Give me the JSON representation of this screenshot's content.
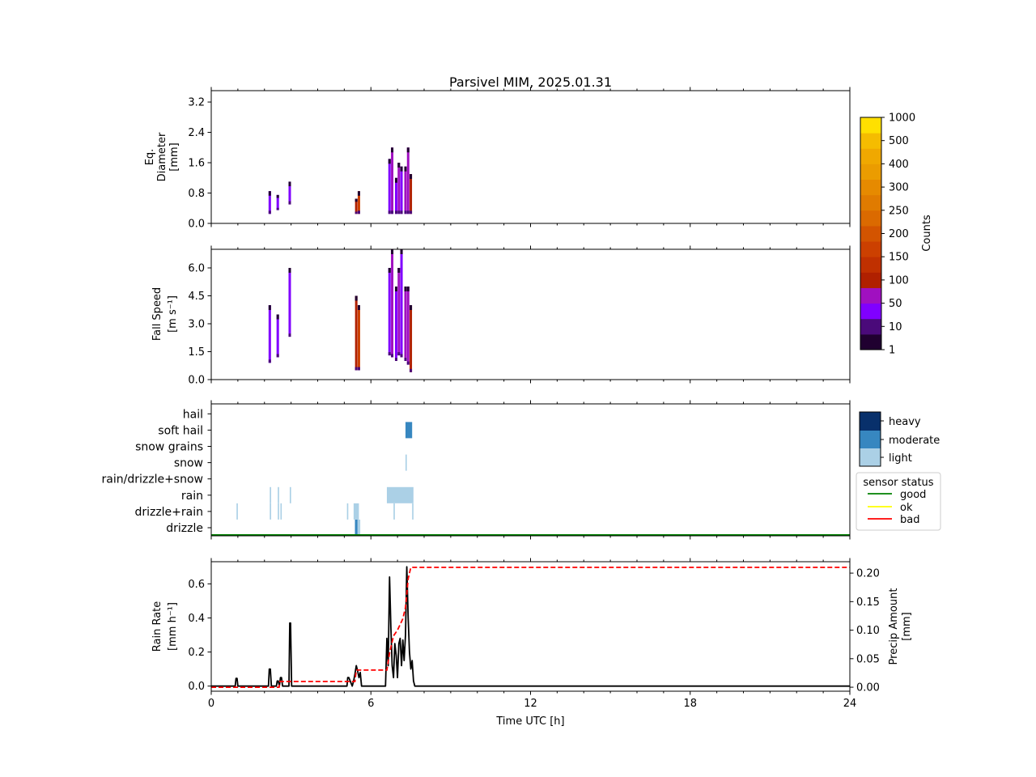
{
  "chart_data": {
    "type": "multi-panel",
    "title": "Parsivel MIM, 2025.01.31",
    "xlabel": "Time UTC [h]",
    "xlim": [
      0,
      24
    ],
    "xticks": [
      "0",
      "6",
      "12",
      "18",
      "24"
    ],
    "panels": [
      {
        "id": "diameter",
        "type": "heatmap",
        "ylabel": [
          "Eq.",
          "Diameter",
          "[mm]"
        ],
        "ylim": [
          0,
          3.5
        ],
        "yticks": [
          0.0,
          0.8,
          1.6,
          2.4,
          3.2
        ],
        "ytick_labels": [
          "0.0",
          "0.8",
          "1.6",
          "2.4",
          "3.2"
        ],
        "columns": [
          {
            "t": 2.2,
            "ymin": 0.25,
            "ymax": 0.85,
            "level": 2
          },
          {
            "t": 2.5,
            "ymin": 0.35,
            "ymax": 0.75,
            "level": 2
          },
          {
            "t": 2.95,
            "ymin": 0.5,
            "ymax": 1.1,
            "level": 2
          },
          {
            "t": 5.45,
            "ymin": 0.25,
            "ymax": 0.65,
            "level": 4
          },
          {
            "t": 5.55,
            "ymin": 0.25,
            "ymax": 0.85,
            "level": 6
          },
          {
            "t": 6.7,
            "ymin": 0.25,
            "ymax": 1.7,
            "level": 2
          },
          {
            "t": 6.8,
            "ymin": 0.25,
            "ymax": 2.0,
            "level": 3
          },
          {
            "t": 6.95,
            "ymin": 0.25,
            "ymax": 1.2,
            "level": 2
          },
          {
            "t": 7.05,
            "ymin": 0.25,
            "ymax": 1.6,
            "level": 3
          },
          {
            "t": 7.15,
            "ymin": 0.25,
            "ymax": 1.5,
            "level": 2
          },
          {
            "t": 7.3,
            "ymin": 0.25,
            "ymax": 1.5,
            "level": 3
          },
          {
            "t": 7.4,
            "ymin": 0.25,
            "ymax": 2.0,
            "level": 3
          },
          {
            "t": 7.5,
            "ymin": 0.25,
            "ymax": 1.3,
            "level": 4
          }
        ]
      },
      {
        "id": "fallspeed",
        "type": "heatmap",
        "ylabel": [
          "Fall Speed",
          "[m s⁻¹]"
        ],
        "ylim": [
          0,
          7.0
        ],
        "yticks": [
          0.0,
          1.5,
          3.0,
          4.5,
          6.0
        ],
        "ytick_labels": [
          "0.0",
          "1.5",
          "3.0",
          "4.5",
          "6.0"
        ],
        "columns": [
          {
            "t": 2.2,
            "ymin": 0.9,
            "ymax": 4.0,
            "level": 2
          },
          {
            "t": 2.5,
            "ymin": 1.2,
            "ymax": 3.5,
            "level": 2
          },
          {
            "t": 2.95,
            "ymin": 2.3,
            "ymax": 6.0,
            "level": 2
          },
          {
            "t": 5.45,
            "ymin": 0.5,
            "ymax": 4.5,
            "level": 4
          },
          {
            "t": 5.55,
            "ymin": 0.5,
            "ymax": 4.0,
            "level": 6
          },
          {
            "t": 6.7,
            "ymin": 1.3,
            "ymax": 6.0,
            "level": 2
          },
          {
            "t": 6.8,
            "ymin": 1.2,
            "ymax": 7.0,
            "level": 3
          },
          {
            "t": 6.95,
            "ymin": 1.0,
            "ymax": 5.0,
            "level": 2
          },
          {
            "t": 7.05,
            "ymin": 1.3,
            "ymax": 6.0,
            "level": 3
          },
          {
            "t": 7.15,
            "ymin": 1.2,
            "ymax": 7.0,
            "level": 2
          },
          {
            "t": 7.3,
            "ymin": 1.0,
            "ymax": 5.0,
            "level": 3
          },
          {
            "t": 7.4,
            "ymin": 0.8,
            "ymax": 5.0,
            "level": 3
          },
          {
            "t": 7.5,
            "ymin": 0.4,
            "ymax": 4.0,
            "level": 4
          }
        ]
      },
      {
        "id": "precip_type",
        "type": "category",
        "categories": [
          "drizzle",
          "drizzle+rain",
          "rain",
          "rain/drizzle+snow",
          "snow",
          "snow grains",
          "soft hail",
          "hail"
        ],
        "segments": [
          {
            "cat": "drizzle",
            "t0": 5.4,
            "t1": 5.5,
            "intensity": "moderate"
          },
          {
            "cat": "drizzle",
            "t0": 5.5,
            "t1": 5.6,
            "intensity": "light"
          },
          {
            "cat": "drizzle+rain",
            "t0": 0.95,
            "t1": 1.0,
            "intensity": "light"
          },
          {
            "cat": "drizzle+rain",
            "t0": 2.2,
            "t1": 2.25,
            "intensity": "light"
          },
          {
            "cat": "drizzle+rain",
            "t0": 2.5,
            "t1": 2.55,
            "intensity": "light"
          },
          {
            "cat": "drizzle+rain",
            "t0": 2.6,
            "t1": 2.65,
            "intensity": "light"
          },
          {
            "cat": "drizzle+rain",
            "t0": 5.1,
            "t1": 5.15,
            "intensity": "light"
          },
          {
            "cat": "drizzle+rain",
            "t0": 5.35,
            "t1": 5.55,
            "intensity": "light"
          },
          {
            "cat": "drizzle+rain",
            "t0": 6.85,
            "t1": 6.9,
            "intensity": "light"
          },
          {
            "cat": "drizzle+rain",
            "t0": 7.55,
            "t1": 7.6,
            "intensity": "light"
          },
          {
            "cat": "rain",
            "t0": 2.2,
            "t1": 2.25,
            "intensity": "light"
          },
          {
            "cat": "rain",
            "t0": 2.5,
            "t1": 2.55,
            "intensity": "light"
          },
          {
            "cat": "rain",
            "t0": 2.95,
            "t1": 3.0,
            "intensity": "light"
          },
          {
            "cat": "rain",
            "t0": 6.6,
            "t1": 7.6,
            "intensity": "light"
          },
          {
            "cat": "snow",
            "t0": 7.3,
            "t1": 7.35,
            "intensity": "light"
          },
          {
            "cat": "soft hail",
            "t0": 7.3,
            "t1": 7.55,
            "intensity": "moderate"
          }
        ],
        "sensor_status": "good",
        "legend": {
          "intensity": [
            "heavy",
            "moderate",
            "light"
          ],
          "status_title": "sensor status",
          "status": [
            "good",
            "ok",
            "bad"
          ]
        }
      },
      {
        "id": "rain",
        "type": "line",
        "ylabel": [
          "Rain Rate",
          "[mm h⁻¹]"
        ],
        "ylim": [
          -0.03,
          0.73
        ],
        "yticks": [
          0.0,
          0.2,
          0.4,
          0.6
        ],
        "ytick_labels": [
          "0.0",
          "0.2",
          "0.4",
          "0.6"
        ],
        "y2label": [
          "Precip Amount",
          "[mm]"
        ],
        "y2lim": [
          -0.007,
          0.22
        ],
        "y2ticks": [
          0.0,
          0.05,
          0.1,
          0.15,
          0.2
        ],
        "y2tick_labels": [
          "0.00",
          "0.05",
          "0.10",
          "0.15",
          "0.20"
        ],
        "rain_rate": {
          "x": [
            0,
            0.9,
            0.93,
            0.97,
            1.0,
            2.15,
            2.18,
            2.22,
            2.26,
            2.45,
            2.48,
            2.52,
            2.56,
            2.6,
            2.64,
            2.68,
            2.92,
            2.95,
            2.98,
            3.02,
            5.1,
            5.13,
            5.17,
            5.3,
            5.35,
            5.4,
            5.45,
            5.5,
            5.55,
            5.6,
            5.65,
            6.55,
            6.6,
            6.65,
            6.7,
            6.75,
            6.8,
            6.85,
            6.9,
            6.95,
            7.0,
            7.05,
            7.1,
            7.15,
            7.2,
            7.25,
            7.3,
            7.35,
            7.4,
            7.45,
            7.5,
            7.55,
            7.6,
            7.65,
            24
          ],
          "y": [
            0,
            0,
            0.045,
            0.045,
            0,
            0,
            0.1,
            0.1,
            0,
            0,
            0.03,
            0.03,
            0,
            0.05,
            0.05,
            0,
            0,
            0.37,
            0.37,
            0,
            0,
            0.05,
            0.05,
            0,
            0.03,
            0.07,
            0.12,
            0.09,
            0.05,
            0.08,
            0,
            0,
            0.28,
            0.12,
            0.64,
            0.35,
            0.12,
            0.05,
            0.25,
            0.18,
            0.05,
            0.25,
            0.28,
            0.12,
            0.27,
            0.15,
            0.3,
            0.7,
            0.4,
            0.2,
            0.1,
            0.15,
            0.03,
            0,
            0
          ]
        },
        "precip_amount": {
          "x": [
            0,
            2.55,
            2.58,
            5.4,
            5.45,
            6.6,
            6.7,
            6.85,
            7.0,
            7.1,
            7.2,
            7.3,
            7.4,
            7.45,
            7.5,
            24
          ],
          "y": [
            0,
            0,
            0.01,
            0.01,
            0.03,
            0.03,
            0.06,
            0.09,
            0.1,
            0.11,
            0.12,
            0.14,
            0.19,
            0.2,
            0.21,
            0.21
          ]
        }
      }
    ],
    "colorbar": {
      "label": "Counts",
      "tick_labels": [
        "1",
        "10",
        "50",
        "100",
        "150",
        "200",
        "250",
        "300",
        "400",
        "500",
        "1000"
      ],
      "colors": [
        "#200030",
        "#4a0a7a",
        "#8000ff",
        "#a010c0",
        "#b02000",
        "#c03000",
        "#cc4000",
        "#d35400",
        "#db6a00",
        "#e07b00",
        "#e68a00",
        "#eb9c00",
        "#f0a800",
        "#f5bc00",
        "#ffe000"
      ]
    }
  }
}
